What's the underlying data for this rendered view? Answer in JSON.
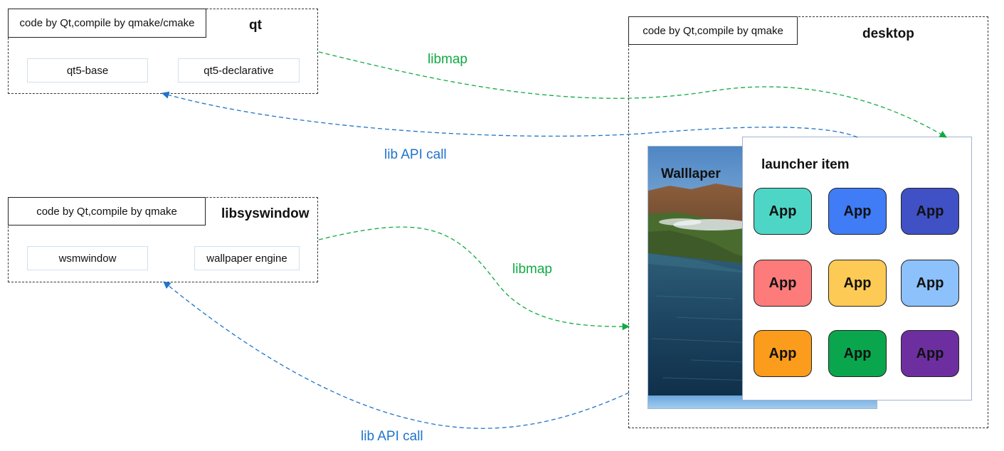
{
  "groups": {
    "qt": {
      "title": "qt",
      "note": "code by Qt,compile by qmake/cmake",
      "modules": [
        "qt5-base",
        "qt5-declarative"
      ]
    },
    "libsyswindow": {
      "title": "libsyswindow",
      "note": "code by Qt,compile by qmake",
      "modules": [
        "wsmwindow",
        "wallpaper engine"
      ]
    },
    "desktop": {
      "title": "desktop",
      "note": "code by Qt,compile by qmake"
    }
  },
  "wallpaper": {
    "label": "Walllaper"
  },
  "launcher": {
    "title": "launcher item",
    "apps": [
      {
        "label": "App",
        "color": "#4dd6c6"
      },
      {
        "label": "App",
        "color": "#3f7cf6"
      },
      {
        "label": "App",
        "color": "#3f51c5"
      },
      {
        "label": "App",
        "color": "#fd7b7a"
      },
      {
        "label": "App",
        "color": "#fdca55"
      },
      {
        "label": "App",
        "color": "#8cc1fb"
      },
      {
        "label": "App",
        "color": "#fb9c1c"
      },
      {
        "label": "App",
        "color": "#0aa64d"
      },
      {
        "label": "App",
        "color": "#6d2fa0"
      }
    ]
  },
  "edges": {
    "qt_libmap": "libmap",
    "qt_api": "lib API call",
    "sys_libmap": "libmap",
    "sys_api": "lib API call"
  },
  "colors": {
    "libmap": "#11aa44",
    "api": "#1f74c8"
  }
}
